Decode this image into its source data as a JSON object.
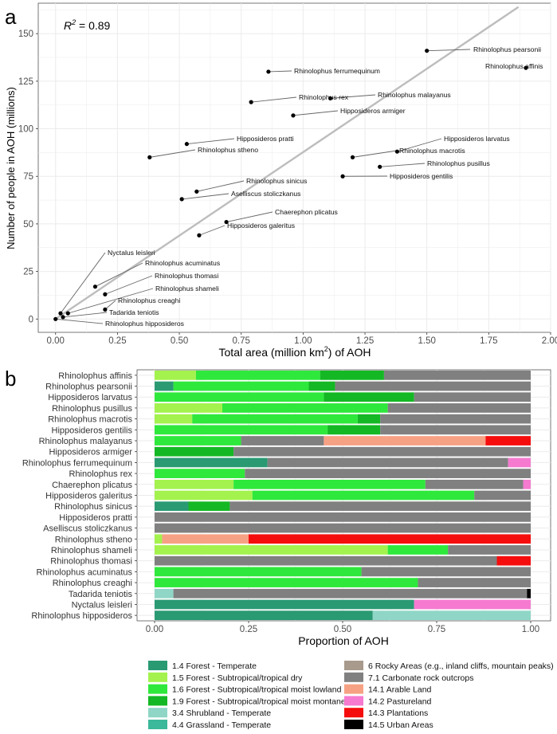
{
  "panel_a": {
    "letter": "a",
    "r2_label": "R",
    "r2_sup": "2",
    "r2_value": " = 0.89",
    "xlabel_pre": "Total area (million km",
    "xlabel_sup": "2",
    "xlabel_post": ") of AOH",
    "ylabel": "Number of people in AOH (millions)"
  },
  "panel_b": {
    "letter": "b",
    "xlabel": "Proportion of AOH"
  },
  "colors": {
    "fit_line": "#bdbdbd",
    "grid": "#ebebeb",
    "point": "#000000"
  },
  "legend": [
    {
      "label": "1.4 Forest - Temperate",
      "color": "#2a9a73"
    },
    {
      "label": "1.5 Forest - Subtropical/tropical dry",
      "color": "#a3f24d"
    },
    {
      "label": "1.6 Forest - Subtropical/tropical moist lowland",
      "color": "#2fe83c"
    },
    {
      "label": "1.9 Forest - Subtropical/tropical moist montane",
      "color": "#14b824"
    },
    {
      "label": "3.4 Shrubland - Temperate",
      "color": "#8fd6c6"
    },
    {
      "label": "4.4 Grassland - Temperate",
      "color": "#3cb89a"
    },
    {
      "label": "6 Rocky Areas (e.g., inland cliffs, mountain peaks)",
      "color": "#a89a8c"
    },
    {
      "label": "7.1 Carbonate rock outcrops",
      "color": "#808080"
    },
    {
      "label": "14.1 Arable Land",
      "color": "#f7a184"
    },
    {
      "label": "14.2 Pastureland",
      "color": "#f57ad0"
    },
    {
      "label": "14.3 Plantations",
      "color": "#f50d0d"
    },
    {
      "label": "14.5 Urban Areas",
      "color": "#000000"
    }
  ],
  "chart_data": [
    {
      "type": "scatter",
      "title": "",
      "xlabel": "Total area (million km2) of AOH",
      "ylabel": "Number of people in AOH (millions)",
      "xlim": [
        -0.07,
        2.0
      ],
      "ylim": [
        -7,
        166
      ],
      "xticks": [
        "0.00",
        "0.25",
        "0.50",
        "0.75",
        "1.00",
        "1.25",
        "1.50",
        "1.75",
        "2.00"
      ],
      "yticks": [
        "0",
        "25",
        "50",
        "75",
        "100",
        "125",
        "150"
      ],
      "annotation": "R2 = 0.89",
      "fit_line": {
        "x": [
          0.0,
          1.87
        ],
        "y": [
          0.0,
          164
        ]
      },
      "points": [
        {
          "label": "Rhinolophus pearsonii",
          "x": 1.5,
          "y": 141
        },
        {
          "label": "Rhinolophus affinis",
          "x": 1.9,
          "y": 132
        },
        {
          "label": "Rhinolophus ferrumequinum",
          "x": 0.86,
          "y": 130
        },
        {
          "label": "Rhinolophus rex",
          "x": 0.79,
          "y": 114
        },
        {
          "label": "Rhinolophus malayanus",
          "x": 1.11,
          "y": 116
        },
        {
          "label": "Hipposideros armiger",
          "x": 0.96,
          "y": 107
        },
        {
          "label": "Hipposideros pratti",
          "x": 0.53,
          "y": 92
        },
        {
          "label": "Rhinolophus stheno",
          "x": 0.38,
          "y": 85
        },
        {
          "label": "Hipposideros larvatus",
          "x": 1.38,
          "y": 88
        },
        {
          "label": "Rhinolophus macrotis",
          "x": 1.2,
          "y": 85
        },
        {
          "label": "Rhinolophus pusillus",
          "x": 1.31,
          "y": 80
        },
        {
          "label": "Hipposideros gentilis",
          "x": 1.16,
          "y": 75
        },
        {
          "label": "Rhinolophus sinicus",
          "x": 0.57,
          "y": 67
        },
        {
          "label": "Aselliscus stoliczkanus",
          "x": 0.51,
          "y": 63
        },
        {
          "label": "Chaerephon plicatus",
          "x": 0.69,
          "y": 51
        },
        {
          "label": "Hipposideros galeritus",
          "x": 0.58,
          "y": 44
        },
        {
          "label": "Nyctalus leisleri",
          "x": 0.02,
          "y": 3
        },
        {
          "label": "Rhinolophus acuminatus",
          "x": 0.16,
          "y": 17
        },
        {
          "label": "Rhinolophus thomasi",
          "x": 0.2,
          "y": 13
        },
        {
          "label": "Rhinolophus shameli",
          "x": 0.05,
          "y": 3
        },
        {
          "label": "Rhinolophus creaghi",
          "x": 0.2,
          "y": 5
        },
        {
          "label": "Tadarida teniotis",
          "x": 0.03,
          "y": 1
        },
        {
          "label": "Rhinolophus hipposideros",
          "x": 0.0,
          "y": 0
        }
      ]
    },
    {
      "type": "bar",
      "orientation": "horizontal",
      "stacked": true,
      "title": "",
      "xlabel": "Proportion of AOH",
      "ylabel": "",
      "xlim": [
        0,
        1
      ],
      "xticks": [
        "0.00",
        "0.25",
        "0.50",
        "0.75",
        "1.00"
      ],
      "legend_position": "bottom",
      "categories": [
        "Rhinolophus affinis",
        "Rhinolophus pearsonii",
        "Hipposideros larvatus",
        "Rhinolophus pusillus",
        "Rhinolophus macrotis",
        "Hipposideros gentilis",
        "Rhinolophus malayanus",
        "Hipposideros armiger",
        "Rhinolophus ferrumequinum",
        "Rhinolophus rex",
        "Chaerephon plicatus",
        "Hipposideros galeritus",
        "Rhinolophus sinicus",
        "Hipposideros pratti",
        "Aselliscus stoliczkanus",
        "Rhinolophus stheno",
        "Rhinolophus shameli",
        "Rhinolophus thomasi",
        "Rhinolophus acuminatus",
        "Rhinolophus creaghi",
        "Tadarida teniotis",
        "Nyctalus leisleri",
        "Rhinolophus hipposideros"
      ],
      "rows": [
        [
          [
            "1.5",
            0.11
          ],
          [
            "1.6",
            0.33
          ],
          [
            "1.9",
            0.17
          ],
          [
            "7.1",
            0.39
          ]
        ],
        [
          [
            "1.4",
            0.05
          ],
          [
            "1.6",
            0.36
          ],
          [
            "1.9",
            0.07
          ],
          [
            "7.1",
            0.52
          ]
        ],
        [
          [
            "1.6",
            0.45
          ],
          [
            "1.9",
            0.24
          ],
          [
            "7.1",
            0.31
          ]
        ],
        [
          [
            "1.5",
            0.18
          ],
          [
            "1.6",
            0.44
          ],
          [
            "7.1",
            0.38
          ]
        ],
        [
          [
            "1.5",
            0.1
          ],
          [
            "1.6",
            0.44
          ],
          [
            "1.9",
            0.06
          ],
          [
            "7.1",
            0.4
          ]
        ],
        [
          [
            "1.6",
            0.46
          ],
          [
            "1.9",
            0.14
          ],
          [
            "7.1",
            0.4
          ]
        ],
        [
          [
            "1.6",
            0.23
          ],
          [
            "7.1",
            0.22
          ],
          [
            "14.1",
            0.43
          ],
          [
            "14.3",
            0.12
          ]
        ],
        [
          [
            "1.9",
            0.21
          ],
          [
            "7.1",
            0.79
          ]
        ],
        [
          [
            "1.4",
            0.3
          ],
          [
            "7.1",
            0.64
          ],
          [
            "14.2",
            0.06
          ]
        ],
        [
          [
            "1.6",
            0.24
          ],
          [
            "7.1",
            0.76
          ]
        ],
        [
          [
            "1.5",
            0.21
          ],
          [
            "1.6",
            0.51
          ],
          [
            "7.1",
            0.26
          ],
          [
            "14.2",
            0.02
          ]
        ],
        [
          [
            "1.5",
            0.26
          ],
          [
            "1.6",
            0.59
          ],
          [
            "7.1",
            0.15
          ]
        ],
        [
          [
            "1.4",
            0.09
          ],
          [
            "1.9",
            0.11
          ],
          [
            "7.1",
            0.8
          ]
        ],
        [
          [
            "7.1",
            1.0
          ]
        ],
        [
          [
            "7.1",
            1.0
          ]
        ],
        [
          [
            "1.5",
            0.02
          ],
          [
            "14.1",
            0.23
          ],
          [
            "14.3",
            0.75
          ]
        ],
        [
          [
            "1.5",
            0.62
          ],
          [
            "1.6",
            0.16
          ],
          [
            "7.1",
            0.22
          ]
        ],
        [
          [
            "7.1",
            0.91
          ],
          [
            "14.3",
            0.09
          ]
        ],
        [
          [
            "1.6",
            0.55
          ],
          [
            "7.1",
            0.45
          ]
        ],
        [
          [
            "1.6",
            0.7
          ],
          [
            "7.1",
            0.3
          ]
        ],
        [
          [
            "3.4",
            0.05
          ],
          [
            "7.1",
            0.94
          ],
          [
            "14.5",
            0.01
          ]
        ],
        [
          [
            "1.4",
            0.69
          ],
          [
            "14.2",
            0.31
          ]
        ],
        [
          [
            "1.4",
            0.58
          ],
          [
            "3.4",
            0.42
          ]
        ]
      ]
    }
  ]
}
